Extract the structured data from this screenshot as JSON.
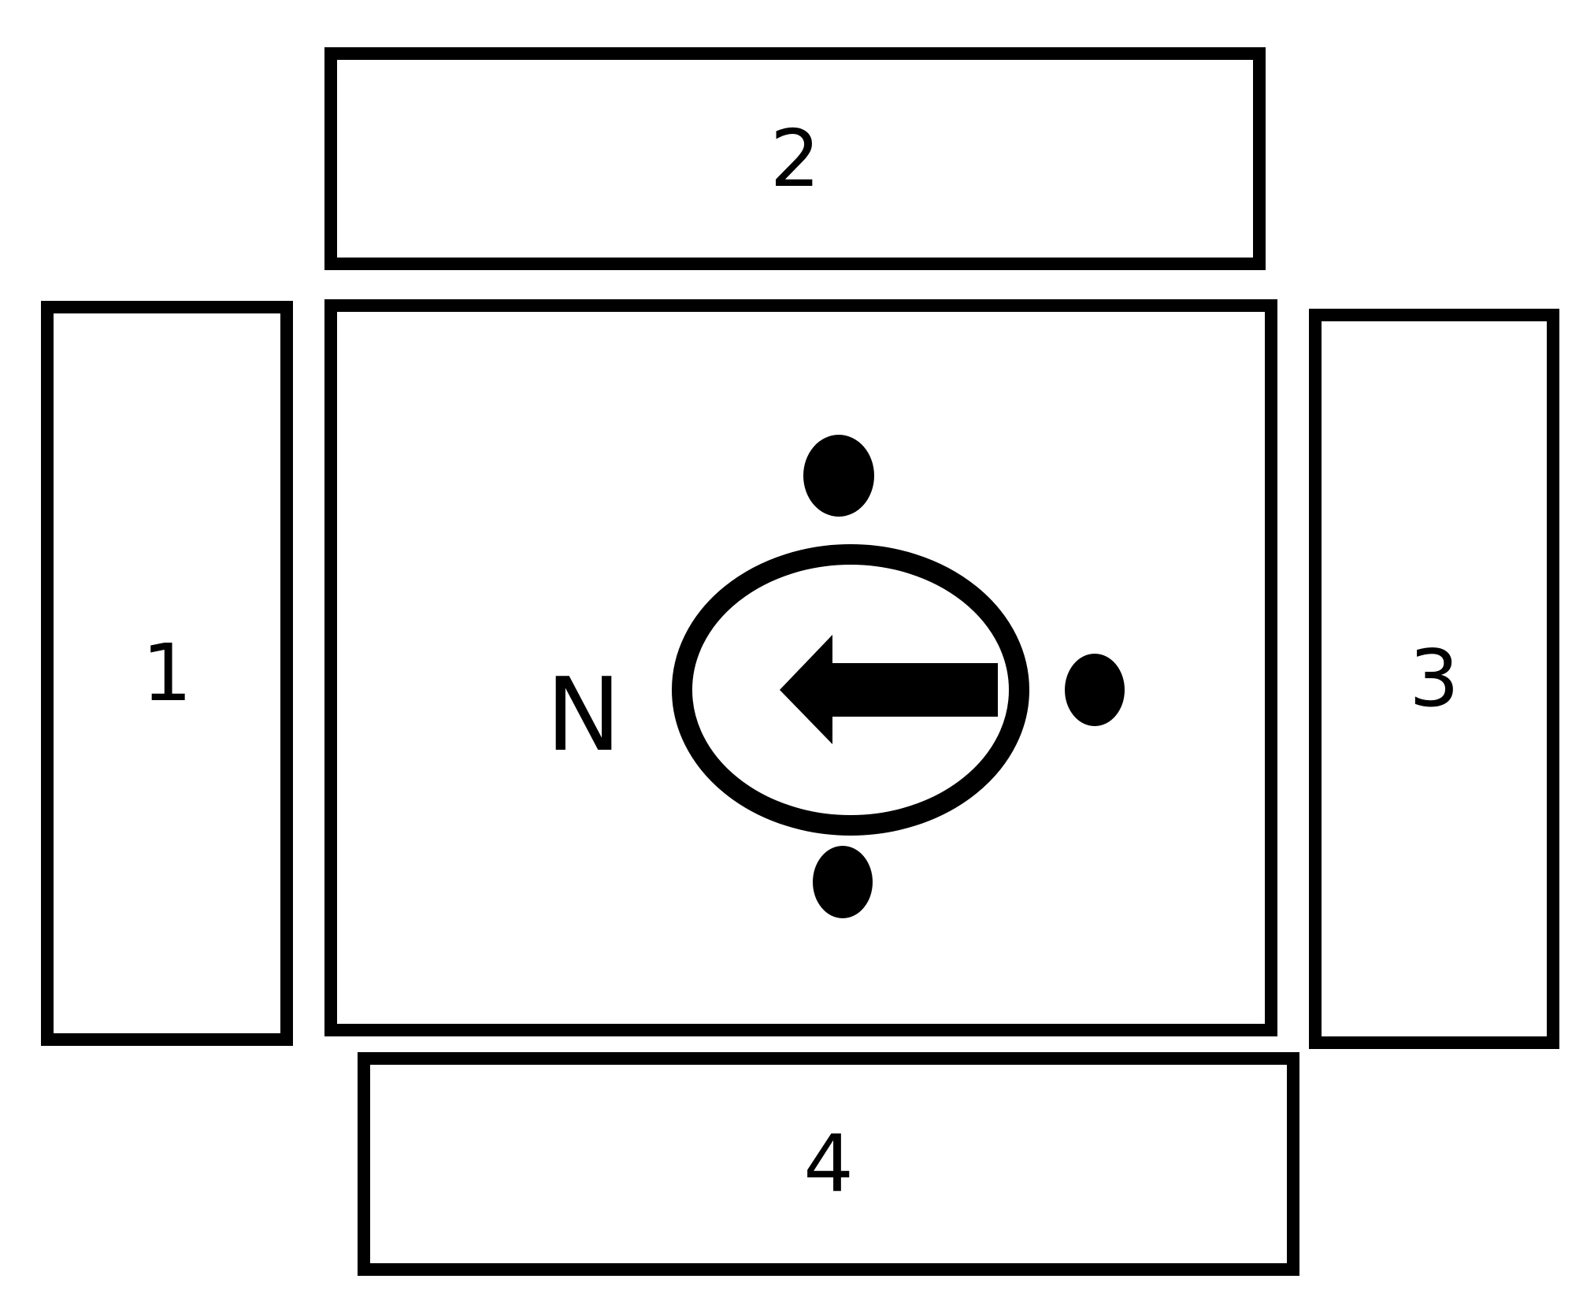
{
  "boxes": {
    "left": "1",
    "top": "2",
    "right": "3",
    "bottom": "4"
  },
  "compass": {
    "north_label": "N",
    "arrow_direction": "left",
    "color": "#000000"
  },
  "background_color": "#ffffff"
}
